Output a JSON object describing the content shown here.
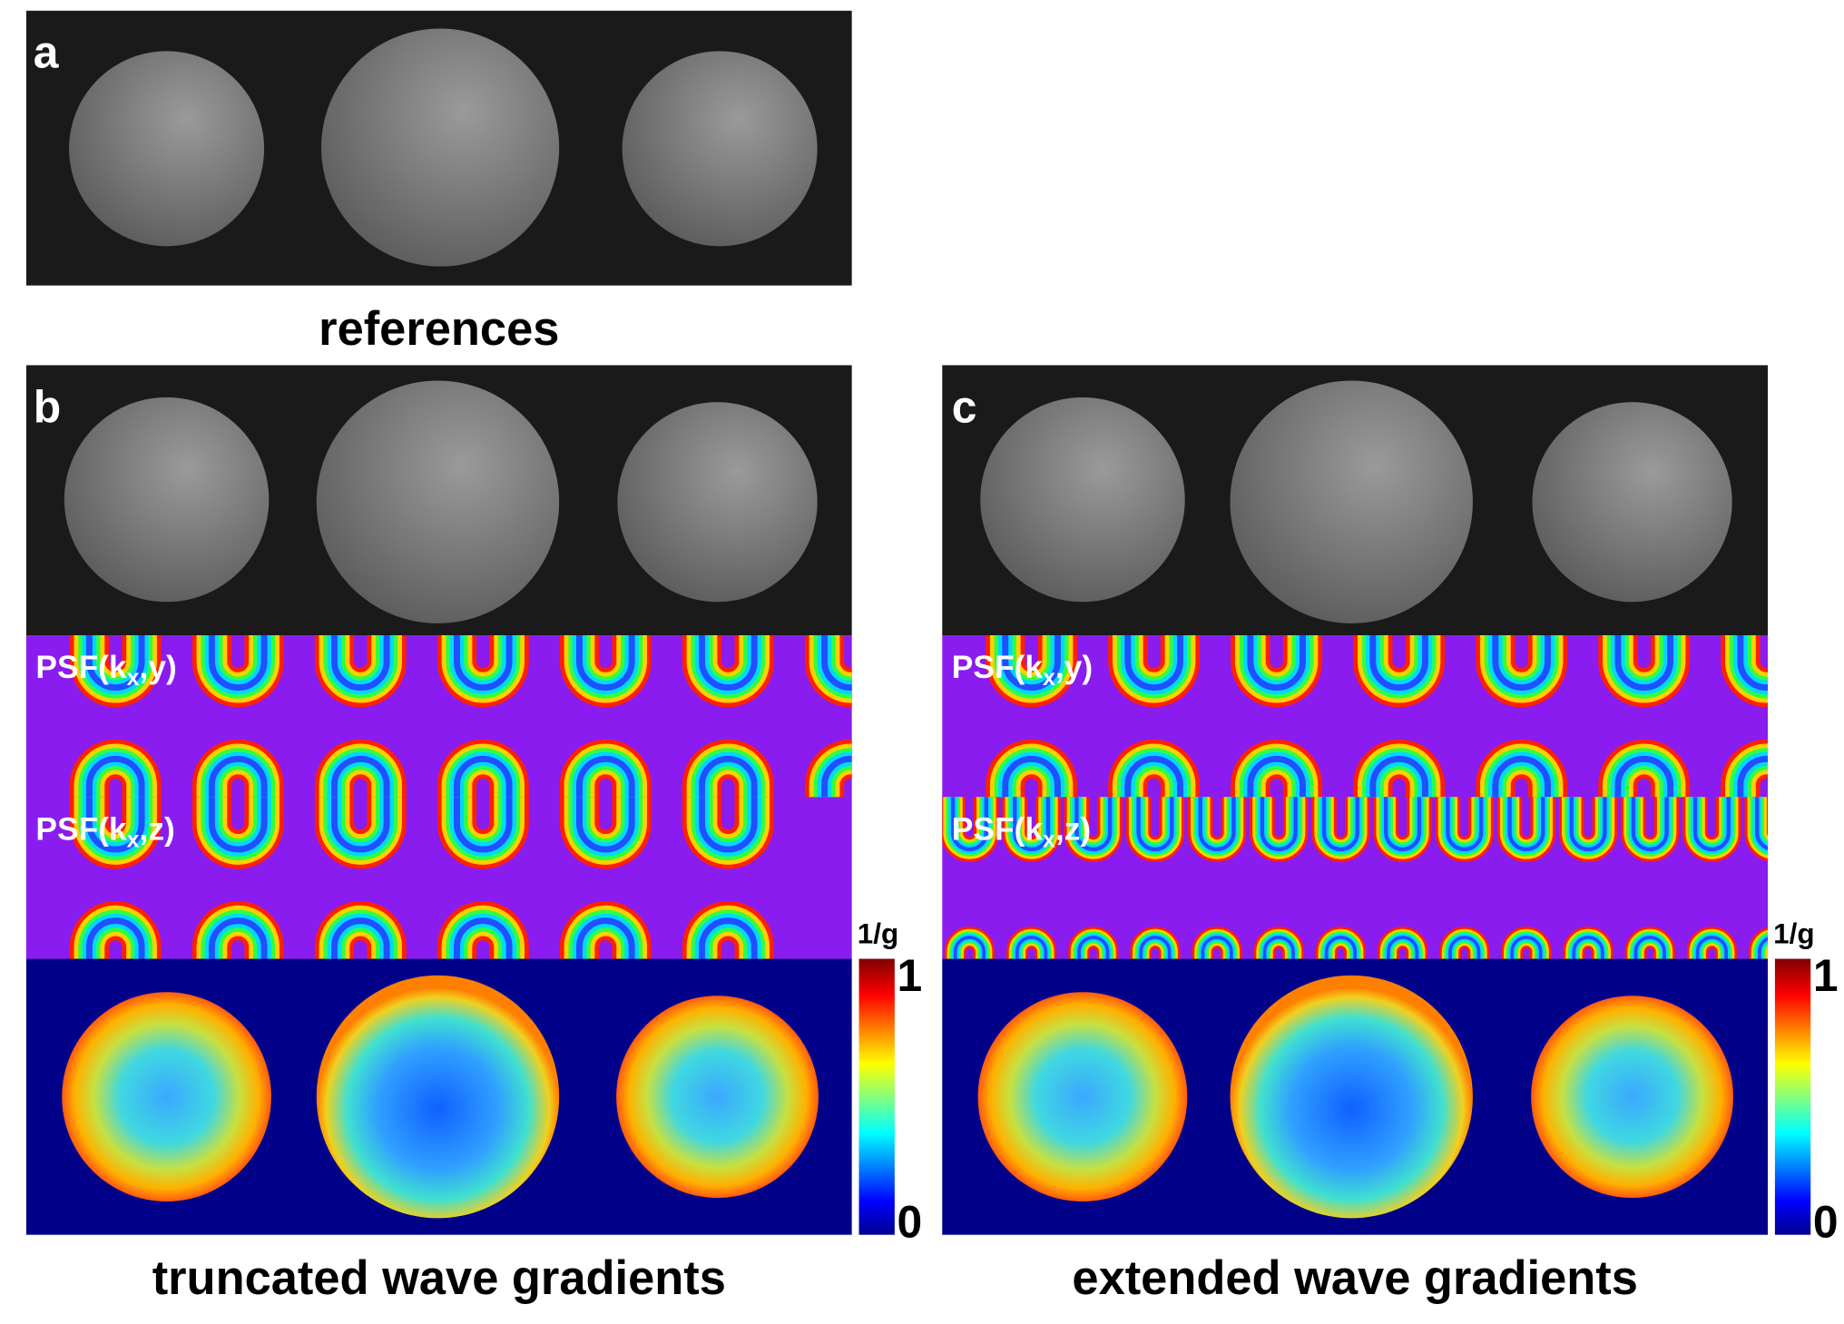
{
  "panels": [
    {
      "label": "a",
      "caption": "references"
    },
    {
      "label": "b",
      "caption": "truncated wave gradients",
      "psf_y": {
        "prefix": "PSF(k",
        "sub": "x",
        "suffix": ",y)"
      },
      "psf_z": {
        "prefix": "PSF(k",
        "sub": "x",
        "suffix": ",z)"
      },
      "colorbar": {
        "label": "1/g",
        "max": 1,
        "min": 0
      }
    },
    {
      "label": "c",
      "caption": "extended wave gradients",
      "psf_y": {
        "prefix": "PSF(k",
        "sub": "x",
        "suffix": ",y)"
      },
      "psf_z": {
        "prefix": "PSF(k",
        "sub": "x",
        "suffix": ",z)"
      },
      "colorbar": {
        "label": "1/g",
        "max": 1,
        "min": 0
      }
    }
  ]
}
